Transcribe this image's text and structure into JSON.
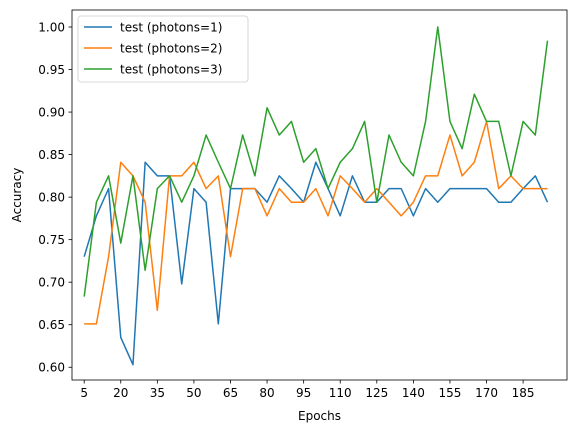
{
  "chart_data": {
    "type": "line",
    "title": "",
    "xlabel": "Epochs",
    "ylabel": "Accuracy",
    "xlim": [
      0,
      203
    ],
    "ylim": [
      0.585,
      1.02
    ],
    "grid": false,
    "legend_position": "top-left",
    "x_ticks": [
      5,
      20,
      35,
      50,
      65,
      80,
      95,
      110,
      125,
      140,
      155,
      170,
      185
    ],
    "y_ticks": [
      0.6,
      0.65,
      0.7,
      0.75,
      0.8,
      0.85,
      0.9,
      0.95,
      1.0
    ],
    "x": [
      5,
      10,
      15,
      20,
      25,
      30,
      35,
      40,
      45,
      50,
      55,
      60,
      65,
      70,
      75,
      80,
      85,
      90,
      95,
      100,
      105,
      110,
      115,
      120,
      125,
      130,
      135,
      140,
      145,
      150,
      155,
      160,
      165,
      170,
      175,
      180,
      185,
      190,
      195
    ],
    "series": [
      {
        "name": "test (photons=1)",
        "color": "#1f77b4",
        "values": [
          0.73,
          0.778,
          0.81,
          0.635,
          0.603,
          0.841,
          0.825,
          0.825,
          0.698,
          0.81,
          0.794,
          0.651,
          0.81,
          0.81,
          0.81,
          0.794,
          0.825,
          0.81,
          0.794,
          0.841,
          0.81,
          0.778,
          0.825,
          0.794,
          0.794,
          0.81,
          0.81,
          0.778,
          0.81,
          0.794,
          0.81,
          0.81,
          0.81,
          0.81,
          0.794,
          0.794,
          0.81,
          0.825,
          0.794
        ]
      },
      {
        "name": "test (photons=2)",
        "color": "#ff7f0e",
        "values": [
          0.651,
          0.651,
          0.73,
          0.841,
          0.825,
          0.794,
          0.667,
          0.825,
          0.825,
          0.841,
          0.81,
          0.825,
          0.73,
          0.81,
          0.81,
          0.778,
          0.81,
          0.794,
          0.794,
          0.81,
          0.778,
          0.825,
          0.81,
          0.794,
          0.81,
          0.794,
          0.778,
          0.794,
          0.825,
          0.825,
          0.873,
          0.825,
          0.841,
          0.889,
          0.81,
          0.825,
          0.81,
          0.81,
          0.81
        ]
      },
      {
        "name": "test (photons=3)",
        "color": "#2ca02c",
        "values": [
          0.683,
          0.794,
          0.825,
          0.746,
          0.825,
          0.714,
          0.81,
          0.825,
          0.794,
          0.825,
          0.873,
          0.841,
          0.81,
          0.873,
          0.825,
          0.905,
          0.873,
          0.889,
          0.841,
          0.857,
          0.81,
          0.841,
          0.857,
          0.889,
          0.794,
          0.873,
          0.841,
          0.825,
          0.889,
          1.0,
          0.889,
          0.857,
          0.921,
          0.889,
          0.889,
          0.825,
          0.889,
          0.873,
          0.984
        ]
      }
    ]
  }
}
